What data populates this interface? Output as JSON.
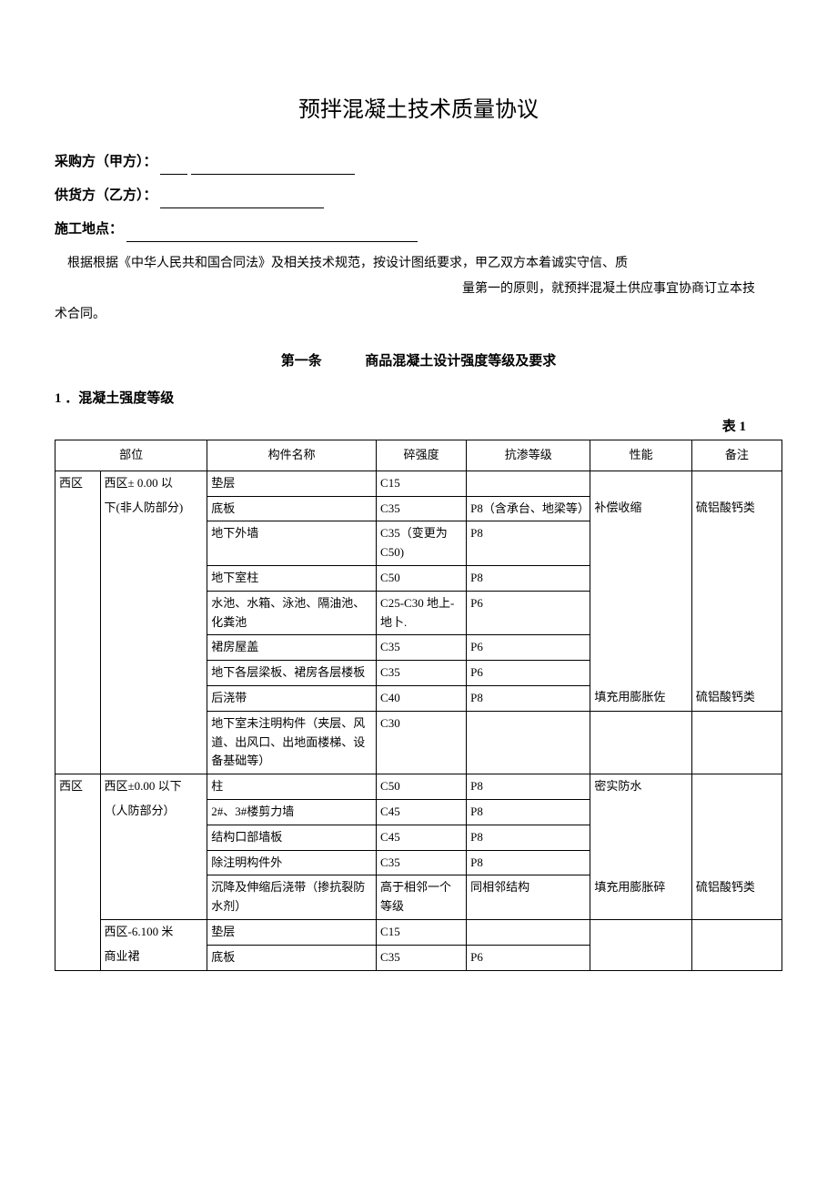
{
  "title": "预拌混凝土技术质量协议",
  "form": {
    "buyer_label": "采购方（甲方）：",
    "supplier_label": "供货方（乙方）：",
    "location_label": "施工地点："
  },
  "intro": {
    "line1": "根据根据《中华人民共和国合同法》及相关技术规范，按设计图纸要求，甲乙双方本着诚实守信、质",
    "line2": "量第一的原则，就预拌混凝土供应事宜协商订立本技",
    "line3": "术合同。"
  },
  "article": {
    "prefix": "第一条",
    "title": "商品混凝土设计强度等级及要求"
  },
  "section1": {
    "header": "1 ．混凝土强度等级",
    "table_label": "表 1"
  },
  "table": {
    "headers": {
      "position": "部位",
      "component": "构件名称",
      "strength": "碎强度",
      "permeability": "抗渗等级",
      "performance": "性能",
      "note": "备注"
    },
    "rows": [
      {
        "area": "西区",
        "sub": "西区± 0.00 以",
        "component": "垫层",
        "strength": "C15",
        "perm": "",
        "perf": "",
        "note": ""
      },
      {
        "area": "",
        "sub": "下(非人防部分)",
        "component": "底板",
        "strength": "C35",
        "perm": "P8（含承台、地梁等）",
        "perf": "补偿收缩",
        "note": "硫铝酸钙类"
      },
      {
        "area": "",
        "sub": "",
        "component": "地下外墙",
        "strength": "C35（变更为 C50)",
        "perm": "P8",
        "perf": "",
        "note": ""
      },
      {
        "area": "",
        "sub": "",
        "component": "地下室柱",
        "strength": "C50",
        "perm": "P8",
        "perf": "",
        "note": ""
      },
      {
        "area": "",
        "sub": "",
        "component": "水池、水箱、泳池、隔油池、化粪池",
        "strength": "C25-C30 地上-地卜.",
        "perm": "P6",
        "perf": "",
        "note": ""
      },
      {
        "area": "",
        "sub": "",
        "component": "裙房屋盖",
        "strength": "C35",
        "perm": "P6",
        "perf": "",
        "note": ""
      },
      {
        "area": "",
        "sub": "",
        "component": "地下各层梁板、裙房各层楼板",
        "strength": "C35",
        "perm": "P6",
        "perf": "",
        "note": ""
      },
      {
        "area": "",
        "sub": "",
        "component": "后浇带",
        "strength": "C40",
        "perm": "P8",
        "perf": "填充用膨胀佐",
        "note": "硫铝酸钙类"
      },
      {
        "area": "",
        "sub": "",
        "component": "地下室未注明构件（夹层、风道、出风口、出地面楼梯、设备基础等）",
        "strength": "C30",
        "perm": "",
        "perf": "",
        "note": ""
      },
      {
        "area": "西区",
        "sub": "西区±0.00 以下",
        "component": "柱",
        "strength": "C50",
        "perm": "P8",
        "perf": "密实防水",
        "note": ""
      },
      {
        "area": "",
        "sub": "（人防部分）",
        "component": "2#、3#楼剪力墙",
        "strength": "C45",
        "perm": "P8",
        "perf": "",
        "note": ""
      },
      {
        "area": "",
        "sub": "",
        "component": "结构口部墙板",
        "strength": "C45",
        "perm": "P8",
        "perf": "",
        "note": ""
      },
      {
        "area": "",
        "sub": "",
        "component": "除注明构件外",
        "strength": "C35",
        "perm": "P8",
        "perf": "",
        "note": ""
      },
      {
        "area": "",
        "sub": "",
        "component": "沉降及伸缩后浇带（掺抗裂防水剂）",
        "strength": "高于相邻一个等级",
        "perm": "同相邻结构",
        "perf": "填充用膨胀碎",
        "note": "硫铝酸钙类"
      },
      {
        "area": "",
        "sub": "西区-6.100 米",
        "component": "垫层",
        "strength": "C15",
        "perm": "",
        "perf": "",
        "note": ""
      },
      {
        "area": "",
        "sub": "商业裙",
        "component": "底板",
        "strength": "C35",
        "perm": "P6",
        "perf": "",
        "note": ""
      }
    ]
  }
}
